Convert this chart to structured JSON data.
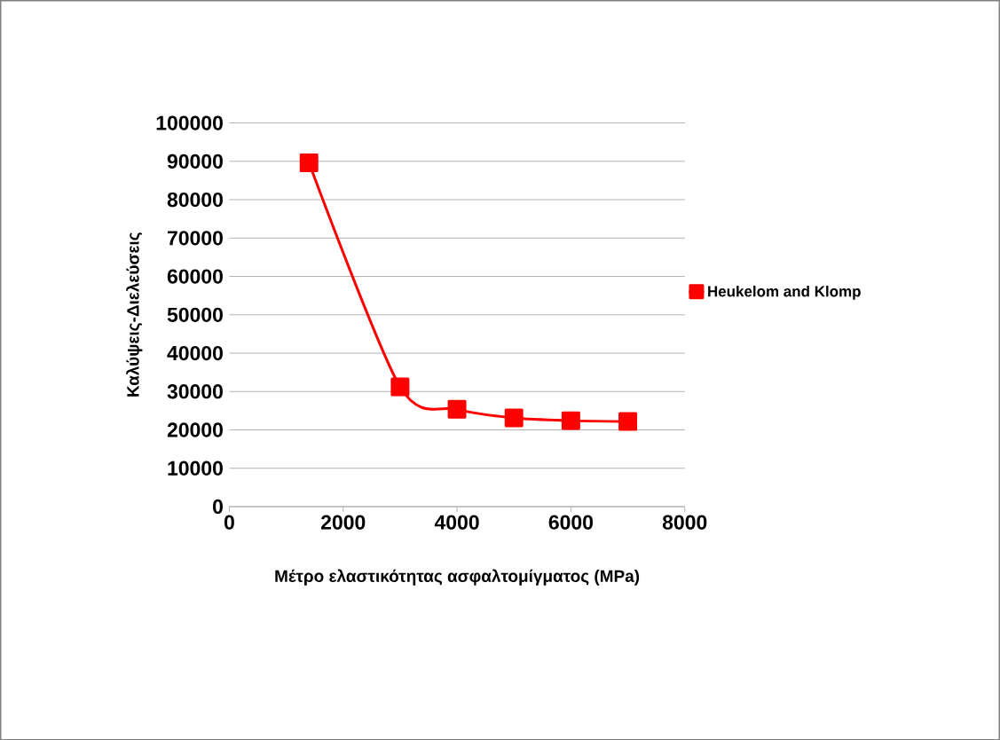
{
  "chart_data": {
    "type": "line",
    "xlabel": "Μέτρο ελαστικότητας ασφαλτομίγματος (MPa)",
    "ylabel": "Καλύψεις-Διελεύσεις",
    "x": [
      1400,
      3000,
      4000,
      5000,
      6000,
      7000
    ],
    "series": [
      {
        "name": "Heukelom and Klomp",
        "color": "#ff0000",
        "values": [
          89600,
          31200,
          25400,
          23100,
          22400,
          22200
        ]
      }
    ],
    "xlim": [
      0,
      8000
    ],
    "xticks": [
      0,
      2000,
      4000,
      6000,
      8000
    ],
    "ylim": [
      0,
      100000
    ],
    "yticks": [
      0,
      10000,
      20000,
      30000,
      40000,
      50000,
      60000,
      70000,
      80000,
      90000,
      100000
    ],
    "grid": "y",
    "legend": "right",
    "marker": "square",
    "line_style": "solid"
  }
}
